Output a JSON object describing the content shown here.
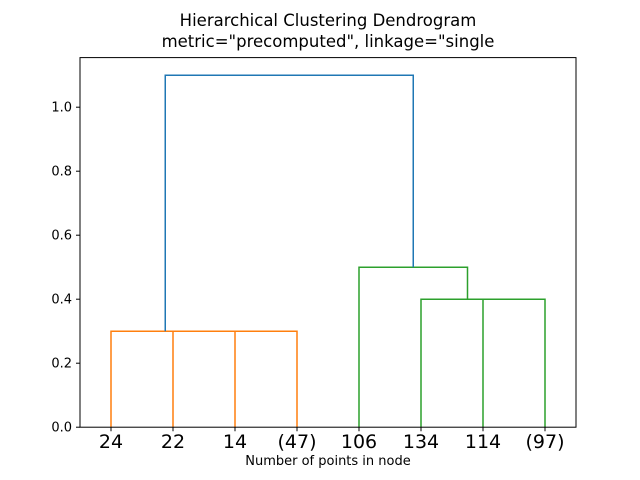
{
  "figure": {
    "title_line1": "Hierarchical Clustering Dendrogram",
    "title_line2": "metric=\"precomputed\", linkage=\"single",
    "xlabel": "Number of points in node",
    "background": "#ffffff"
  },
  "chart_data": {
    "type": "dendrogram",
    "title": "Hierarchical Clustering Dendrogram",
    "subtitle": "metric=\"precomputed\", linkage=\"single",
    "xlabel": "Number of points in node",
    "ylabel": "",
    "grid": false,
    "legend": false,
    "xlim": [
      0,
      80
    ],
    "ylim": [
      0,
      1.155
    ],
    "yticks": [
      0.0,
      0.2,
      0.4,
      0.6,
      0.8,
      1.0
    ],
    "ytick_labels": [
      "0.0",
      "0.2",
      "0.4",
      "0.6",
      "0.8",
      "1.0"
    ],
    "leaf_labels": [
      "24",
      "22",
      "14",
      "(47)",
      "106",
      "134",
      "114",
      "(97)"
    ],
    "leaf_positions": [
      5,
      15,
      25,
      35,
      45,
      55,
      65,
      75
    ],
    "colors": {
      "above_threshold_link": "#1f77b4",
      "cluster_left": "#ff7f0e",
      "cluster_right": "#2ca02c",
      "spine": "#000000",
      "text": "#000000"
    },
    "merges": [
      {
        "children": [
          "14",
          "(47)"
        ],
        "height": 0.3
      },
      {
        "children": [
          "22",
          "14+(47)"
        ],
        "height": 0.3
      },
      {
        "children": [
          "24",
          "22+14+(47)"
        ],
        "height": 0.3
      },
      {
        "children": [
          "114",
          "(97)"
        ],
        "height": 0.4
      },
      {
        "children": [
          "134",
          "114+(97)"
        ],
        "height": 0.4
      },
      {
        "children": [
          "106",
          "134+114+(97)"
        ],
        "height": 0.5
      },
      {
        "children": [
          "24+22+14+(47)",
          "106+134+114+(97)"
        ],
        "height": 1.1
      }
    ],
    "links": [
      {
        "color": "#ff7f0e",
        "x": [
          25,
          25,
          35,
          35
        ],
        "y": [
          0,
          0.3,
          0.3,
          0
        ]
      },
      {
        "color": "#ff7f0e",
        "x": [
          15,
          15,
          30,
          30
        ],
        "y": [
          0,
          0.3,
          0.3,
          0.3
        ]
      },
      {
        "color": "#ff7f0e",
        "x": [
          5,
          5,
          22.5,
          22.5
        ],
        "y": [
          0,
          0.3,
          0.3,
          0.3
        ]
      },
      {
        "color": "#2ca02c",
        "x": [
          65,
          65,
          75,
          75
        ],
        "y": [
          0,
          0.4,
          0.4,
          0
        ]
      },
      {
        "color": "#2ca02c",
        "x": [
          55,
          55,
          70,
          70
        ],
        "y": [
          0,
          0.4,
          0.4,
          0.4
        ]
      },
      {
        "color": "#2ca02c",
        "x": [
          45,
          45,
          62.5,
          62.5
        ],
        "y": [
          0,
          0.5,
          0.5,
          0.4
        ]
      },
      {
        "color": "#1f77b4",
        "x": [
          13.75,
          13.75,
          53.75,
          53.75
        ],
        "y": [
          0.3,
          1.1,
          1.1,
          0.5
        ]
      }
    ]
  }
}
